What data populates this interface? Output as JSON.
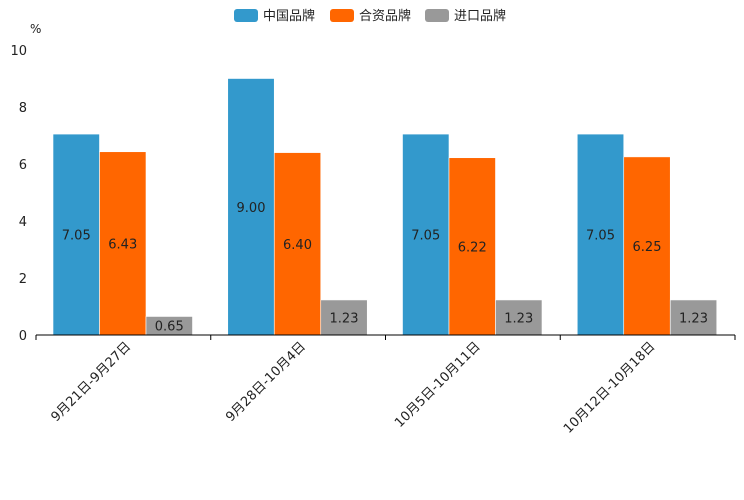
{
  "chart_data": {
    "type": "bar",
    "title": "",
    "ylabel": "%",
    "xlabel": "",
    "ylim": [
      0,
      10
    ],
    "yticks": [
      "0",
      "2",
      "4",
      "6",
      "8",
      "10"
    ],
    "categories": [
      "9月21日-9月27日",
      "9月28日-10月4日",
      "10月5日-10月11日",
      "10月12日-10月18日"
    ],
    "series": [
      {
        "name": "中国品牌",
        "color": "#3399cc",
        "values": [
          7.05,
          9.0,
          7.05,
          7.05
        ],
        "labels": [
          "7.05",
          "9.00",
          "7.05",
          "7.05"
        ]
      },
      {
        "name": "合资品牌",
        "color": "#ff6600",
        "values": [
          6.43,
          6.4,
          6.22,
          6.25
        ],
        "labels": [
          "6.43",
          "6.40",
          "6.22",
          "6.25"
        ]
      },
      {
        "name": "进口品牌",
        "color": "#999999",
        "values": [
          0.65,
          1.23,
          1.23,
          1.23
        ],
        "labels": [
          "0.65",
          "1.23",
          "1.23",
          "1.23"
        ]
      }
    ],
    "legend_position": "top-center"
  }
}
